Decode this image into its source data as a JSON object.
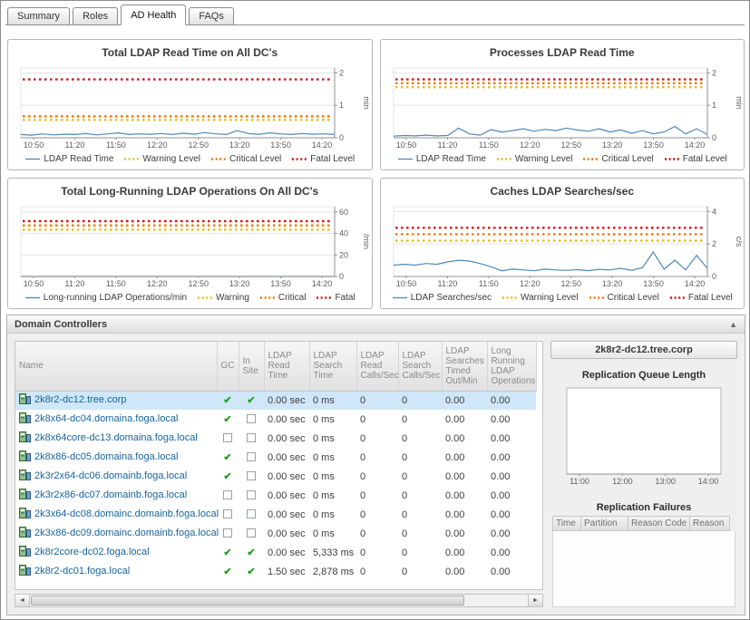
{
  "tabs": {
    "items": [
      {
        "label": "Summary",
        "active": false
      },
      {
        "label": "Roles",
        "active": false
      },
      {
        "label": "AD Health",
        "active": true
      },
      {
        "label": "FAQs",
        "active": false
      }
    ]
  },
  "colors": {
    "series_blue": "#4d88bb",
    "warning_yellow": "#e3bf1b",
    "critical_orange": "#f07800",
    "fatal_red": "#dd1111",
    "selected_row": "#cfe7f8",
    "dc_name_blue": "#16649c"
  },
  "charts": [
    {
      "type": "line",
      "title": "Total LDAP Read Time on All DC's",
      "unit": "min",
      "ymax": 2.15,
      "yticks": [
        0,
        1,
        2
      ],
      "xticks": [
        "10:50",
        "11:20",
        "11:50",
        "12:20",
        "12:50",
        "13:20",
        "13:50",
        "14:20"
      ],
      "series": {
        "name": "LDAP Read Time",
        "color": "#4d88bb",
        "values": [
          0.1,
          0.08,
          0.12,
          0.09,
          0.11,
          0.1,
          0.13,
          0.09,
          0.12,
          0.15,
          0.1,
          0.12,
          0.11,
          0.13,
          0.1,
          0.14,
          0.11,
          0.16,
          0.12,
          0.1,
          0.22,
          0.13,
          0.11,
          0.15,
          0.12,
          0.1,
          0.13,
          0.11,
          0.12,
          0.1
        ]
      },
      "thresholds": [
        {
          "label": "Warning Level",
          "value": 0.55,
          "color": "#e3bf1b"
        },
        {
          "label": "Critical Level",
          "value": 0.66,
          "color": "#f07800"
        },
        {
          "label": "Fatal Level",
          "value": 1.8,
          "color": "#dd1111"
        }
      ]
    },
    {
      "type": "line",
      "title": "Processes LDAP Read Time",
      "unit": "min",
      "ymax": 2.15,
      "yticks": [
        0,
        1,
        2
      ],
      "xticks": [
        "10:50",
        "11:20",
        "11:50",
        "12:20",
        "12:50",
        "13:20",
        "13:50",
        "14:20"
      ],
      "series": {
        "name": "LDAP Read Time",
        "color": "#4d88bb",
        "values": [
          0.05,
          0.07,
          0.06,
          0.08,
          0.06,
          0.07,
          0.3,
          0.12,
          0.08,
          0.25,
          0.18,
          0.22,
          0.28,
          0.2,
          0.26,
          0.22,
          0.3,
          0.24,
          0.2,
          0.28,
          0.18,
          0.24,
          0.14,
          0.22,
          0.12,
          0.18,
          0.35,
          0.12,
          0.28,
          0.1
        ]
      },
      "thresholds": [
        {
          "label": "Warning Level",
          "value": 1.56,
          "color": "#e3bf1b"
        },
        {
          "label": "Critical Level",
          "value": 1.68,
          "color": "#f07800"
        },
        {
          "label": "Fatal Level",
          "value": 1.8,
          "color": "#dd1111"
        }
      ]
    },
    {
      "type": "line",
      "title": "Total Long-Running LDAP Operations On All DC's",
      "unit": "/min",
      "ymax": 65,
      "yticks": [
        0,
        20,
        40,
        60
      ],
      "xticks": [
        "10:50",
        "11:20",
        "11:50",
        "12:20",
        "12:50",
        "13:20",
        "13:50",
        "14:20"
      ],
      "series": {
        "name": "Long-running LDAP Operations/min",
        "color": "#4d88bb",
        "values": [
          0,
          0,
          0,
          0,
          0,
          0,
          0,
          0,
          0,
          0,
          0,
          0,
          0,
          0,
          0,
          0,
          0,
          0,
          0,
          0,
          0,
          0,
          0,
          0,
          0,
          0,
          0,
          0,
          0,
          0
        ]
      },
      "thresholds": [
        {
          "label": "Warning",
          "value": 43.5,
          "color": "#e3bf1b"
        },
        {
          "label": "Critical",
          "value": 47.5,
          "color": "#f07800"
        },
        {
          "label": "Fatal",
          "value": 51.5,
          "color": "#dd1111"
        }
      ]
    },
    {
      "type": "line",
      "title": "Caches LDAP Searches/sec",
      "unit": "c/s",
      "ymax": 4.3,
      "yticks": [
        0,
        2,
        4
      ],
      "xticks": [
        "10:50",
        "11:20",
        "11:50",
        "12:20",
        "12:50",
        "13:20",
        "13:50",
        "14:20"
      ],
      "series": {
        "name": "LDAP Searches/sec",
        "color": "#4d88bb",
        "values": [
          0.7,
          0.75,
          0.7,
          0.8,
          0.75,
          0.9,
          1.0,
          0.95,
          0.8,
          0.6,
          0.35,
          0.45,
          0.4,
          0.35,
          0.45,
          0.4,
          0.38,
          0.42,
          0.36,
          0.44,
          0.4,
          0.5,
          0.38,
          0.55,
          1.5,
          0.45,
          1.0,
          0.4,
          1.3,
          0.5
        ]
      },
      "thresholds": [
        {
          "label": "Warning Level",
          "value": 2.2,
          "color": "#e3bf1b"
        },
        {
          "label": "Critical Level",
          "value": 2.6,
          "color": "#f07800"
        },
        {
          "label": "Fatal Level",
          "value": 3.0,
          "color": "#dd1111"
        }
      ]
    }
  ],
  "dc_panel": {
    "title": "Domain Controllers",
    "collapse_icon": "▲",
    "scrollbar": {
      "left_arrow": "◄",
      "right_arrow": "►"
    },
    "table": {
      "columns": [
        "Name",
        "GC",
        "In Site",
        "LDAP Read Time",
        "LDAP Search Time",
        "LDAP Read Calls/Sec",
        "LDAP Search Calls/Sec",
        "LDAP Searches Timed Out/Min",
        "Long Running LDAP Operations"
      ],
      "rows": [
        {
          "name": "2k8r2-dc12.tree.corp",
          "gc": true,
          "in_site": true,
          "values": [
            "0.00 sec",
            "0 ms",
            "0",
            "0",
            "0.00",
            "0.00"
          ],
          "selected": true
        },
        {
          "name": "2k8x64-dc04.domaina.foga.local",
          "gc": true,
          "in_site": false,
          "values": [
            "0.00 sec",
            "0 ms",
            "0",
            "0",
            "0.00",
            "0.00"
          ],
          "selected": false
        },
        {
          "name": "2k8x64core-dc13.domaina.foga.local",
          "gc": false,
          "in_site": false,
          "values": [
            "0.00 sec",
            "0 ms",
            "0",
            "0",
            "0.00",
            "0.00"
          ],
          "selected": false
        },
        {
          "name": "2k8x86-dc05.domaina.foga.local",
          "gc": true,
          "in_site": false,
          "values": [
            "0.00 sec",
            "0 ms",
            "0",
            "0",
            "0.00",
            "0.00"
          ],
          "selected": false
        },
        {
          "name": "2k3r2x64-dc06.domainb.foga.local",
          "gc": true,
          "in_site": false,
          "values": [
            "0.00 sec",
            "0 ms",
            "0",
            "0",
            "0.00",
            "0.00"
          ],
          "selected": false
        },
        {
          "name": "2k3r2x86-dc07.domainb.foga.local",
          "gc": false,
          "in_site": false,
          "values": [
            "0.00 sec",
            "0 ms",
            "0",
            "0",
            "0.00",
            "0.00"
          ],
          "selected": false
        },
        {
          "name": "2k3x64-dc08.domainc.domainb.foga.local",
          "gc": false,
          "in_site": false,
          "values": [
            "0.00 sec",
            "0 ms",
            "0",
            "0",
            "0.00",
            "0.00"
          ],
          "selected": false
        },
        {
          "name": "2k3x86-dc09.domainc.domainb.foga.local",
          "gc": false,
          "in_site": false,
          "values": [
            "0.00 sec",
            "0 ms",
            "0",
            "0",
            "0.00",
            "0.00"
          ],
          "selected": false
        },
        {
          "name": "2k8r2core-dc02.foga.local",
          "gc": true,
          "in_site": true,
          "values": [
            "0.00 sec",
            "5,333 ms",
            "0",
            "0",
            "0.00",
            "0.00"
          ],
          "selected": false
        },
        {
          "name": "2k8r2-dc01.foga.local",
          "gc": true,
          "in_site": true,
          "values": [
            "1.50 sec",
            "2,878 ms",
            "0",
            "0",
            "0.00",
            "0.00"
          ],
          "selected": false
        }
      ]
    }
  },
  "detail": {
    "title": "2k8r2-dc12.tree.corp",
    "queue_chart": {
      "title": "Replication Queue Length",
      "xticks": [
        "11:00",
        "12:00",
        "13:00",
        "14:00"
      ],
      "series_values": []
    },
    "failures": {
      "title": "Replication Failures",
      "columns": [
        "Time",
        "Partition",
        "Reason Code",
        "Reason"
      ],
      "rows": []
    }
  }
}
